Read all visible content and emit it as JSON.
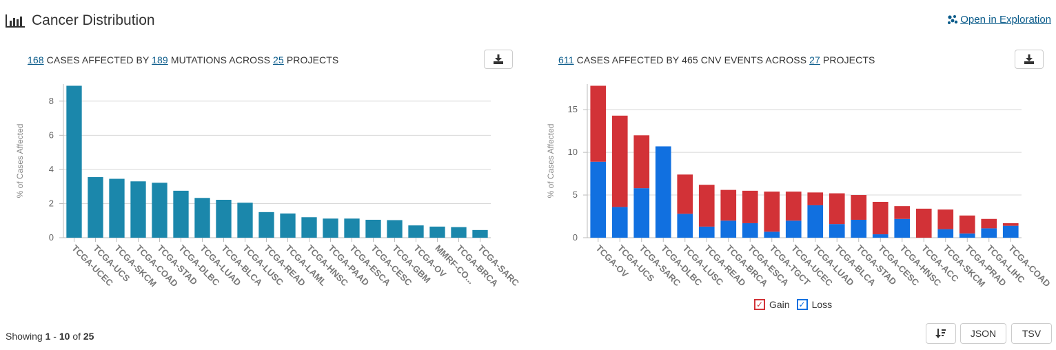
{
  "header": {
    "title": "Cancer Distribution",
    "explore_label": "Open in Exploration",
    "icons": {
      "title": "bar-chart-icon",
      "explore": "dots-cluster-icon",
      "download": "download-icon",
      "sort": "sort-icon"
    }
  },
  "left_summary": {
    "cases": "168",
    "t1": "CASES AFFECTED BY",
    "mutations": "189",
    "t2": "MUTATIONS ACROSS",
    "projects": "25",
    "t3": "PROJECTS"
  },
  "right_summary": {
    "cases": "611",
    "t1": "CASES AFFECTED BY 465 CNV EVENTS ACROSS",
    "projects": "27",
    "t2": "PROJECTS"
  },
  "footer": {
    "showing_prefix": "Showing",
    "range_start": "1",
    "dash": "-",
    "range_end": "10",
    "of": "of",
    "total": "25",
    "json_label": "JSON",
    "tsv_label": "TSV"
  },
  "chart_data": [
    {
      "type": "bar",
      "ylabel": "% of Cases Affected",
      "ylim": [
        0,
        9
      ],
      "yticks": [
        0,
        2,
        4,
        6,
        8
      ],
      "grid": true,
      "bar_color": "#1b87ab",
      "categories": [
        "TCGA-UCEC",
        "TCGA-UCS",
        "TCGA-SKCM",
        "TCGA-COAD",
        "TCGA-STAD",
        "TCGA-DLBC",
        "TCGA-LUAD",
        "TCGA-BLCA",
        "TCGA-LUSC",
        "TCGA-READ",
        "TCGA-LAML",
        "TCGA-HNSC",
        "TCGA-PAAD",
        "TCGA-ESCA",
        "TCGA-CESC",
        "TCGA-GBM",
        "TCGA-OV",
        "MMRF-CO...",
        "TCGA-BRCA",
        "TCGA-SARC"
      ],
      "values": [
        8.9,
        3.55,
        3.45,
        3.3,
        3.22,
        2.75,
        2.33,
        2.22,
        2.05,
        1.5,
        1.42,
        1.2,
        1.12,
        1.12,
        1.05,
        1.03,
        0.72,
        0.65,
        0.62,
        0.45
      ]
    },
    {
      "type": "bar",
      "stacked": true,
      "ylabel": "% of Cases Affected",
      "ylim": [
        0,
        18
      ],
      "yticks": [
        0,
        5,
        10,
        15
      ],
      "grid": true,
      "legend_position": "bottom",
      "categories": [
        "TCGA-OV",
        "TCGA-UCS",
        "TCGA-SARC",
        "TCGA-DLBC",
        "TCGA-LUSC",
        "TCGA-READ",
        "TCGA-BRCA",
        "TCGA-ESCA",
        "TCGA-TGCT",
        "TCGA-UCEC",
        "TCGA-LUAD",
        "TCGA-BLCA",
        "TCGA-STAD",
        "TCGA-CESC",
        "TCGA-HNSC",
        "TCGA-ACC",
        "TCGA-SKCM",
        "TCGA-PRAD",
        "TCGA-LIHC",
        "TCGA-COAD"
      ],
      "series": [
        {
          "name": "Loss",
          "color": "#1170e0",
          "values": [
            8.9,
            3.6,
            5.8,
            10.7,
            2.8,
            1.3,
            2.0,
            1.7,
            0.7,
            2.0,
            3.8,
            1.6,
            2.1,
            0.4,
            2.2,
            0.0,
            1.0,
            0.5,
            1.1,
            1.4
          ]
        },
        {
          "name": "Gain",
          "color": "#d23237",
          "values": [
            8.9,
            10.7,
            6.2,
            0.0,
            4.6,
            4.9,
            3.6,
            3.8,
            4.7,
            3.4,
            1.5,
            3.6,
            2.9,
            3.8,
            1.5,
            3.4,
            2.3,
            2.1,
            1.1,
            0.3
          ]
        }
      ]
    }
  ]
}
